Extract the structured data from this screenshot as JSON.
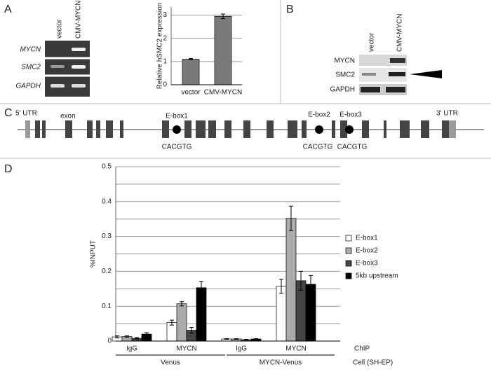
{
  "panels": [
    "A",
    "B",
    "C",
    "D"
  ],
  "gel_a": {
    "lanes": [
      "vector",
      "CMV-MYCN"
    ],
    "rows": [
      "MYCN",
      "SMC2",
      "GAPDH"
    ]
  },
  "blot_b": {
    "lanes": [
      "vector",
      "CMV-MYCN"
    ],
    "rows": [
      "MYCN",
      "SMC2",
      "GAPDH"
    ]
  },
  "gene_c": {
    "utr5": "5' UTR",
    "exon": "exon",
    "utr3": "3' UTR",
    "eboxes": [
      {
        "name": "E-box1",
        "motif": "CACGTG"
      },
      {
        "name": "E-box2",
        "motif": "CACGTG"
      },
      {
        "name": "E-box3",
        "motif": "CACGTG"
      }
    ]
  },
  "chart_data": [
    {
      "type": "bar",
      "ylabel": "Relative hSMC2 expression",
      "categories": [
        "vector",
        "CMV-MYCN"
      ],
      "values": [
        1.1,
        2.95
      ],
      "errors": [
        0.03,
        0.1
      ],
      "color": "#7a7a7a",
      "ylim": [
        0,
        3.35
      ],
      "yticks": [
        0,
        1,
        2,
        3
      ],
      "grid": true
    },
    {
      "type": "bar",
      "ylabel": "%INPUT",
      "categories": [
        "IgG",
        "MYCN",
        "IgG",
        "MYCN"
      ],
      "groups": [
        {
          "name": "Venus",
          "size": 2
        },
        {
          "name": "MYCN-Venus",
          "size": 2
        }
      ],
      "category_axis_label": "ChIP",
      "group_axis_label": "Cell (SH-EP)",
      "series": [
        {
          "name": "E-box1",
          "color": "#ffffff",
          "values": [
            0.012,
            0.053,
            0.006,
            0.157
          ],
          "errors": [
            0.003,
            0.007,
            0.001,
            0.02
          ]
        },
        {
          "name": "E-box2",
          "color": "#aaaaaa",
          "values": [
            0.013,
            0.107,
            0.006,
            0.352
          ],
          "errors": [
            0.002,
            0.006,
            0.001,
            0.035
          ]
        },
        {
          "name": "E-box3",
          "color": "#444444",
          "values": [
            0.008,
            0.031,
            0.004,
            0.173
          ],
          "errors": [
            0.002,
            0.008,
            0.001,
            0.027
          ]
        },
        {
          "name": "5kb upstream",
          "color": "#000000",
          "values": [
            0.02,
            0.153,
            0.006,
            0.163
          ],
          "errors": [
            0.004,
            0.018,
            0.001,
            0.025
          ]
        }
      ],
      "ylim": [
        0,
        0.5
      ],
      "yticks": [
        0,
        0.1,
        0.2,
        0.3,
        0.4,
        0.5
      ],
      "minor_yticks": [
        0.05,
        0.15,
        0.25,
        0.35,
        0.45
      ],
      "grid": true,
      "legend": "right"
    }
  ]
}
